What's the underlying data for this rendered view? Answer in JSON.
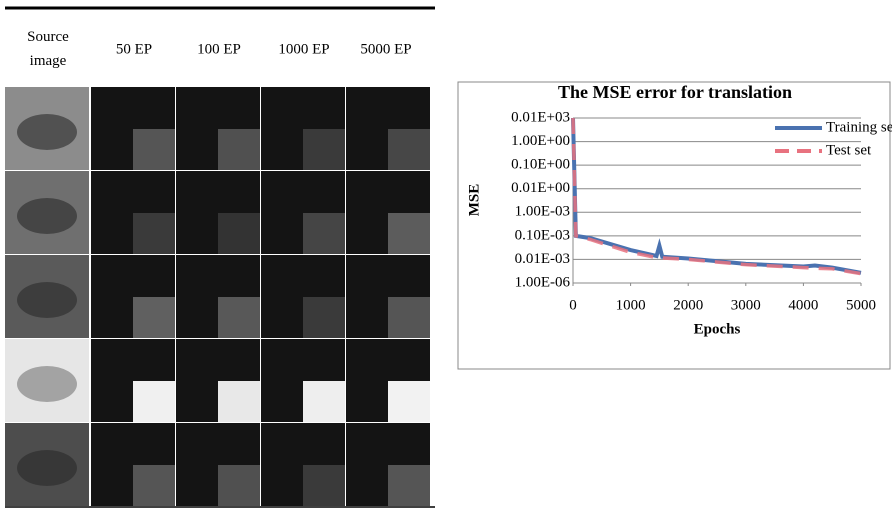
{
  "table": {
    "header": [
      "Source image",
      "50 EP",
      "100 EP",
      "1000 EP",
      "5000 EP"
    ]
  },
  "chart_data": {
    "type": "line",
    "title": "The MSE error for translation",
    "x_label": "Epochs",
    "y_label": "MSE",
    "yscale": "log",
    "grid": true,
    "legend": "top-right",
    "x": [
      0,
      50,
      300,
      1000,
      1450,
      1500,
      1550,
      2000,
      3000,
      4000,
      4200,
      4500,
      5000
    ],
    "series": [
      {
        "name": "Training set",
        "color": "#4a72b0",
        "dash": false,
        "values": [
          10,
          0.0001,
          8e-05,
          2.5e-05,
          1.4e-05,
          3.8e-05,
          1.3e-05,
          1.1e-05,
          6.5e-06,
          5e-06,
          5.5e-06,
          4.5e-06,
          2.7e-06
        ]
      },
      {
        "name": "Test set",
        "color": "#e8727f",
        "dash": true,
        "values": [
          10,
          0.0001,
          7e-05,
          2e-05,
          1.2e-05,
          1.2e-05,
          1.15e-05,
          1e-05,
          6e-06,
          4.5e-06,
          4.2e-06,
          4e-06,
          2.5e-06
        ]
      }
    ],
    "xlim": [
      0,
      5000
    ],
    "xticks": [
      0,
      1000,
      2000,
      3000,
      4000,
      5000
    ],
    "ylim": [
      1e-06,
      10
    ],
    "yticks": [
      {
        "value": 10,
        "label": "0.01E+03"
      },
      {
        "value": 1,
        "label": "1.00E+00"
      },
      {
        "value": 0.1,
        "label": "0.10E+00"
      },
      {
        "value": 0.01,
        "label": "0.01E+00"
      },
      {
        "value": 0.001,
        "label": "1.00E-03"
      },
      {
        "value": 0.0001,
        "label": "0.10E-03"
      },
      {
        "value": 1e-05,
        "label": "0.01E-03"
      },
      {
        "value": 1e-06,
        "label": "1.00E-06"
      }
    ]
  }
}
